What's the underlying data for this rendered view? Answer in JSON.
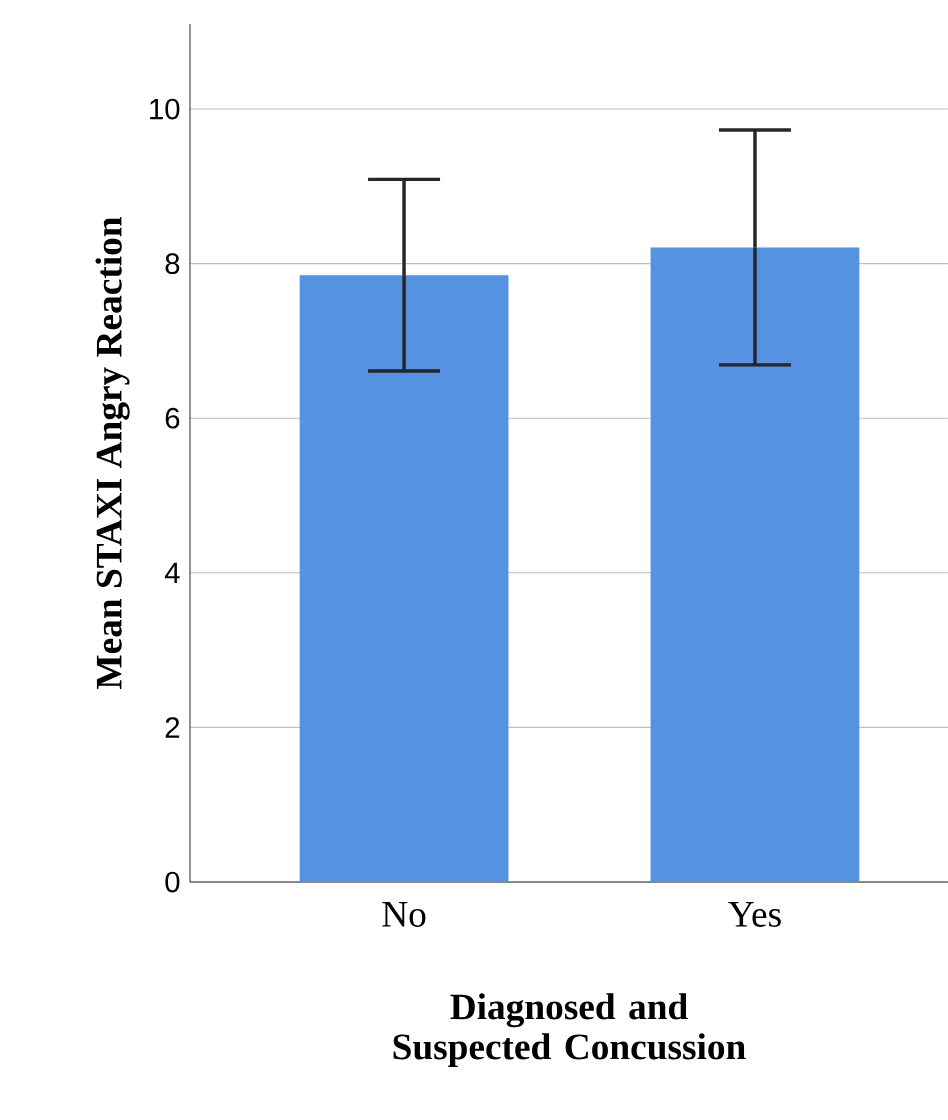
{
  "chart_data": {
    "type": "bar",
    "xlabel": "Diagnosed and Suspected Concussion",
    "ylabel": "Mean STAXI Angry Reaction",
    "categories": [
      "No",
      "Yes"
    ],
    "values": [
      7.85,
      8.21
    ],
    "errors": [
      1.24,
      1.52
    ],
    "color": "#5592e0",
    "ylim": [
      0,
      11.1
    ],
    "yticks": [
      0,
      2,
      4,
      6,
      8,
      10
    ],
    "grid": "y"
  }
}
